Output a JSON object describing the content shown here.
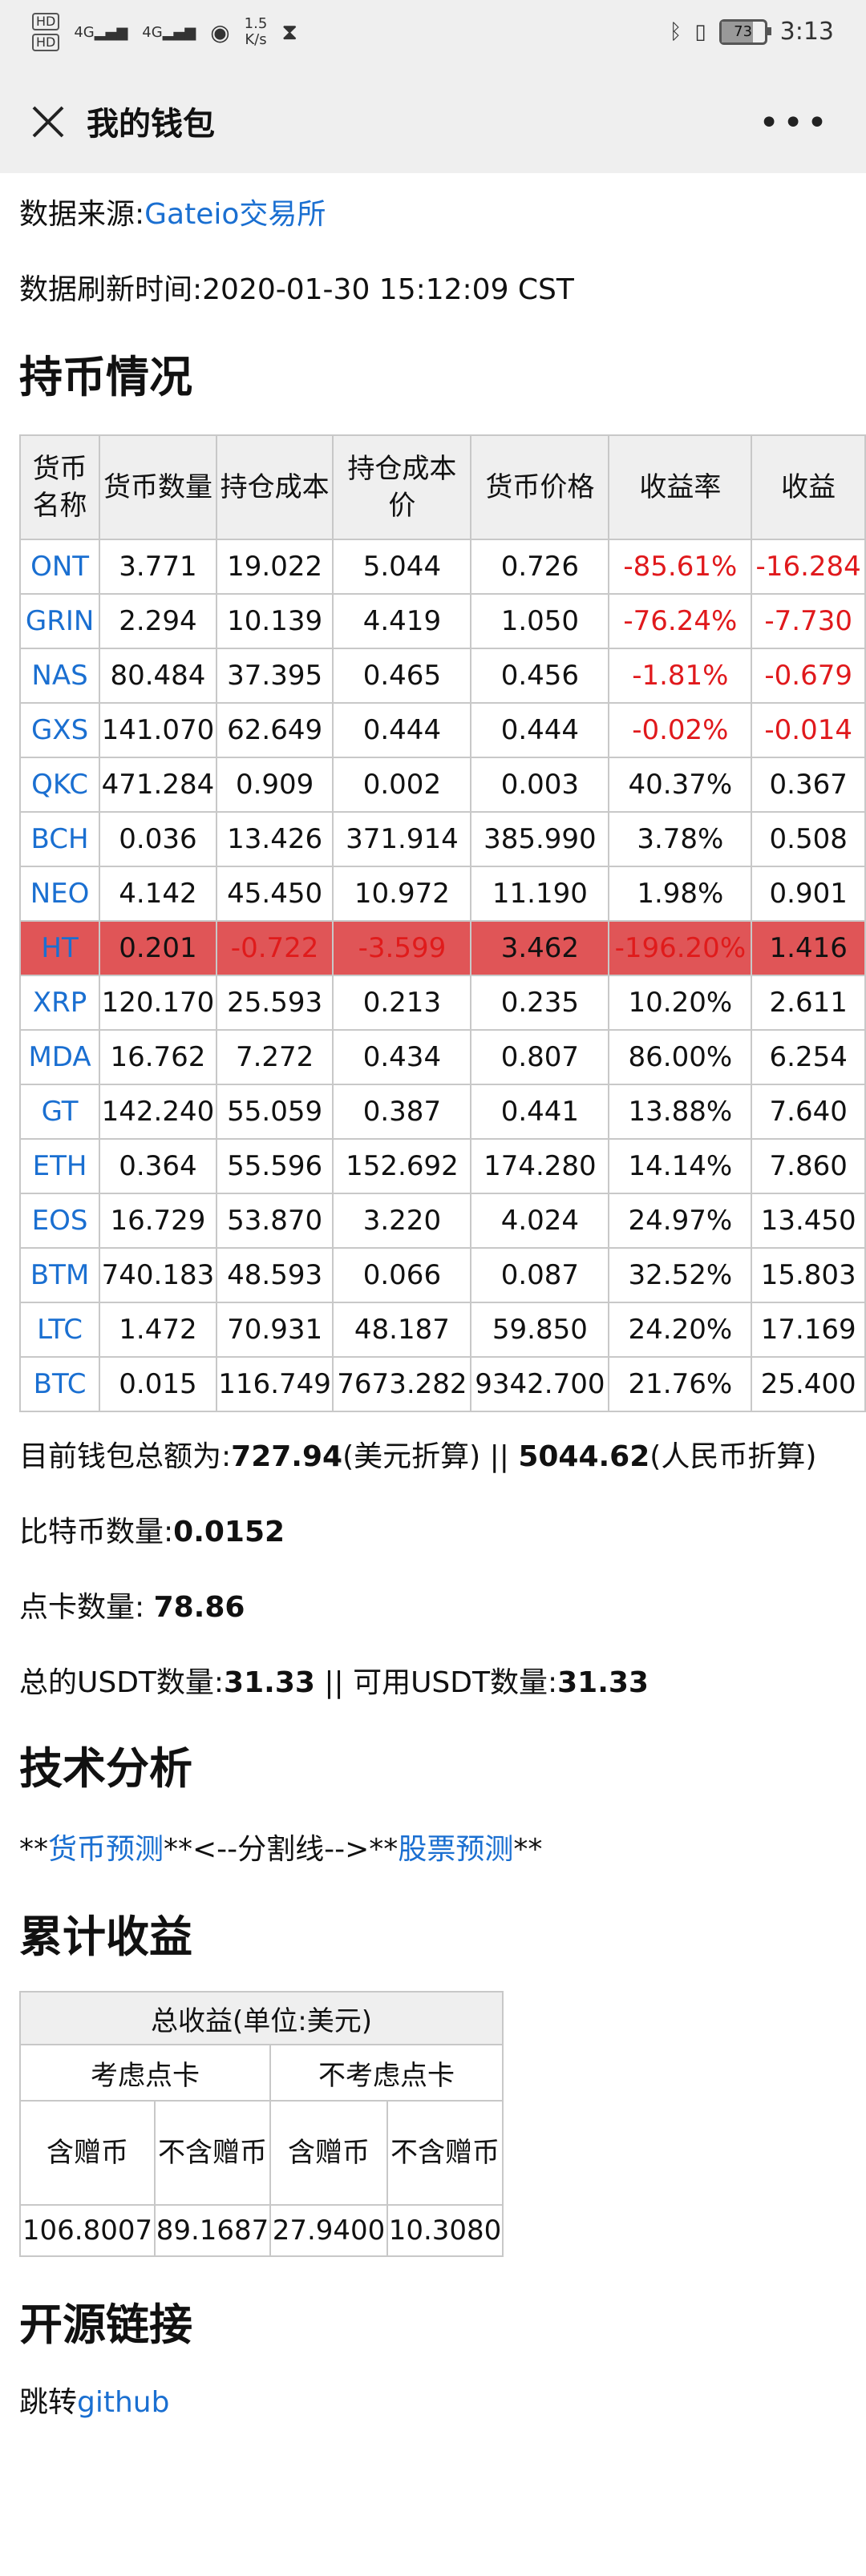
{
  "status_bar": {
    "hd1": "HD",
    "hd2": "HD",
    "net1": "4G",
    "net2": "4G",
    "speed": "1.5",
    "speed_unit": "K/s",
    "battery": "73",
    "time": "3:13"
  },
  "nav": {
    "title": "我的钱包"
  },
  "source": {
    "label": "数据来源:",
    "link": "Gateio交易所"
  },
  "refresh": "数据刷新时间:2020-01-30 15:12:09 CST",
  "holdings": {
    "title": "持币情况",
    "headers": [
      "货币名称",
      "货币数量",
      "持仓成本",
      "持仓成本价",
      "货币价格",
      "收益率",
      "收益"
    ],
    "rows": [
      {
        "sym": "ONT",
        "qty": "3.771",
        "cost": "19.022",
        "cost_price": "5.044",
        "price": "0.726",
        "rate": "-85.61%",
        "profit": "-16.284"
      },
      {
        "sym": "GRIN",
        "qty": "2.294",
        "cost": "10.139",
        "cost_price": "4.419",
        "price": "1.050",
        "rate": "-76.24%",
        "profit": "-7.730"
      },
      {
        "sym": "NAS",
        "qty": "80.484",
        "cost": "37.395",
        "cost_price": "0.465",
        "price": "0.456",
        "rate": "-1.81%",
        "profit": "-0.679"
      },
      {
        "sym": "GXS",
        "qty": "141.070",
        "cost": "62.649",
        "cost_price": "0.444",
        "price": "0.444",
        "rate": "-0.02%",
        "profit": "-0.014"
      },
      {
        "sym": "QKC",
        "qty": "471.284",
        "cost": "0.909",
        "cost_price": "0.002",
        "price": "0.003",
        "rate": "40.37%",
        "profit": "0.367"
      },
      {
        "sym": "BCH",
        "qty": "0.036",
        "cost": "13.426",
        "cost_price": "371.914",
        "price": "385.990",
        "rate": "3.78%",
        "profit": "0.508"
      },
      {
        "sym": "NEO",
        "qty": "4.142",
        "cost": "45.450",
        "cost_price": "10.972",
        "price": "11.190",
        "rate": "1.98%",
        "profit": "0.901"
      },
      {
        "sym": "HT",
        "qty": "0.201",
        "cost": "-0.722",
        "cost_price": "-3.599",
        "price": "3.462",
        "rate": "-196.20%",
        "profit": "1.416"
      },
      {
        "sym": "XRP",
        "qty": "120.170",
        "cost": "25.593",
        "cost_price": "0.213",
        "price": "0.235",
        "rate": "10.20%",
        "profit": "2.611"
      },
      {
        "sym": "MDA",
        "qty": "16.762",
        "cost": "7.272",
        "cost_price": "0.434",
        "price": "0.807",
        "rate": "86.00%",
        "profit": "6.254"
      },
      {
        "sym": "GT",
        "qty": "142.240",
        "cost": "55.059",
        "cost_price": "0.387",
        "price": "0.441",
        "rate": "13.88%",
        "profit": "7.640"
      },
      {
        "sym": "ETH",
        "qty": "0.364",
        "cost": "55.596",
        "cost_price": "152.692",
        "price": "174.280",
        "rate": "14.14%",
        "profit": "7.860"
      },
      {
        "sym": "EOS",
        "qty": "16.729",
        "cost": "53.870",
        "cost_price": "3.220",
        "price": "4.024",
        "rate": "24.97%",
        "profit": "13.450"
      },
      {
        "sym": "BTM",
        "qty": "740.183",
        "cost": "48.593",
        "cost_price": "0.066",
        "price": "0.087",
        "rate": "32.52%",
        "profit": "15.803"
      },
      {
        "sym": "LTC",
        "qty": "1.472",
        "cost": "70.931",
        "cost_price": "48.187",
        "price": "59.850",
        "rate": "24.20%",
        "profit": "17.169"
      },
      {
        "sym": "BTC",
        "qty": "0.015",
        "cost": "116.749",
        "cost_price": "7673.282",
        "price": "9342.700",
        "rate": "21.76%",
        "profit": "25.400"
      }
    ]
  },
  "summary": {
    "total_label": "目前钱包总额为:",
    "total_usd": "727.94",
    "total_usd_note": "(美元折算) || ",
    "total_cny": "5044.62",
    "total_cny_note": "(人民币折算)",
    "btc_label": "比特币数量:",
    "btc_value": "0.0152",
    "card_label": "点卡数量: ",
    "card_value": "78.86",
    "usdt_label": "总的USDT数量:",
    "usdt_value": "31.33",
    "usdt_sep": " || 可用USDT数量:",
    "usdt_avail": "31.33"
  },
  "tech": {
    "title": "技术分析",
    "prefix": "**",
    "coin_link": "货币预测",
    "middle": "**<--分割线-->**",
    "stock_link": "股票预测",
    "suffix": "**"
  },
  "cumulative": {
    "title": "累计收益",
    "header": "总收益(单位:美元)",
    "group1": "考虑点卡",
    "group2": "不考虑点卡",
    "sub1": "含赠币",
    "sub2": "不含赠币",
    "sub3": "含赠币",
    "sub4": "不含赠币",
    "values": [
      "106.8007",
      "89.1687",
      "27.9400",
      "10.3080"
    ]
  },
  "open_source": {
    "title": "开源链接",
    "prefix": "跳转",
    "link": "github"
  }
}
